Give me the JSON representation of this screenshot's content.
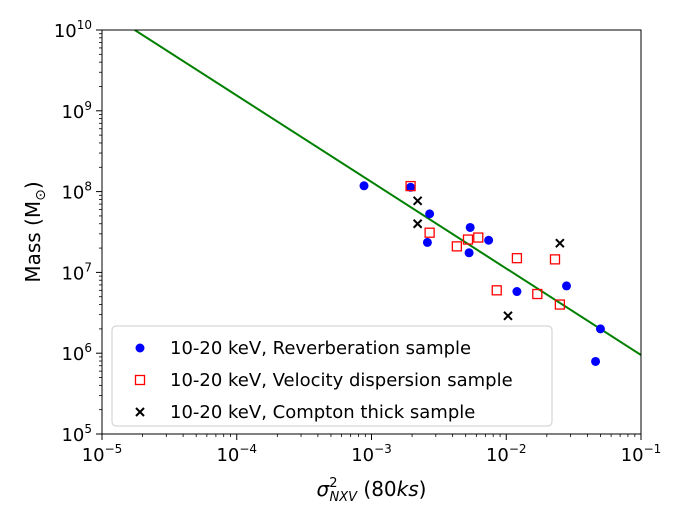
{
  "chart_data": {
    "type": "scatter",
    "title": "",
    "xlabel": {
      "symbol": "σ",
      "sup": "2",
      "sub": "NXV",
      "rest_open": " (80",
      "rest_italic": "ks",
      "rest_close": ")"
    },
    "ylabel": {
      "text": "Mass (M",
      "sub": "⊙",
      "close": ")"
    },
    "xscale": "log",
    "yscale": "log",
    "xlim": [
      1e-05,
      0.1
    ],
    "ylim": [
      100000,
      10000000000
    ],
    "x_ticks": [
      {
        "base": "10",
        "exp": "−5",
        "value": 1e-05
      },
      {
        "base": "10",
        "exp": "−4",
        "value": 0.0001
      },
      {
        "base": "10",
        "exp": "−3",
        "value": 0.001
      },
      {
        "base": "10",
        "exp": "−2",
        "value": 0.01
      },
      {
        "base": "10",
        "exp": "−1",
        "value": 0.1
      }
    ],
    "y_ticks": [
      {
        "base": "10",
        "exp": "5",
        "value": 100000
      },
      {
        "base": "10",
        "exp": "6",
        "value": 1000000
      },
      {
        "base": "10",
        "exp": "7",
        "value": 10000000
      },
      {
        "base": "10",
        "exp": "8",
        "value": 100000000
      },
      {
        "base": "10",
        "exp": "9",
        "value": 1000000000
      },
      {
        "base": "10",
        "exp": "10",
        "value": 10000000000
      }
    ],
    "legend_position": "lower-left",
    "series": [
      {
        "name": "10-20 keV, Reverberation sample",
        "marker": "circle",
        "color": "#0000ff",
        "points": [
          [
            0.00088,
            118000000
          ],
          [
            0.00195,
            113000000
          ],
          [
            0.0027,
            53000000
          ],
          [
            0.0026,
            23500000
          ],
          [
            0.0054,
            36000000
          ],
          [
            0.0053,
            17500000
          ],
          [
            0.0074,
            25000000
          ],
          [
            0.012,
            5800000
          ],
          [
            0.028,
            6800000
          ],
          [
            0.05,
            2000000
          ],
          [
            0.046,
            790000
          ]
        ]
      },
      {
        "name": "10-20 keV, Velocity dispersion sample",
        "marker": "square-open",
        "color": "#ff0000",
        "points": [
          [
            0.00195,
            117000000
          ],
          [
            0.0027,
            31000000
          ],
          [
            0.0043,
            21000000
          ],
          [
            0.0052,
            25500000
          ],
          [
            0.0062,
            27000000
          ],
          [
            0.0085,
            6000000
          ],
          [
            0.012,
            15000000
          ],
          [
            0.017,
            5400000
          ],
          [
            0.023,
            14500000
          ],
          [
            0.025,
            4000000
          ]
        ]
      },
      {
        "name": "10-20 keV, Compton thick sample",
        "marker": "x",
        "color": "#000000",
        "points": [
          [
            0.0022,
            77000000
          ],
          [
            0.0022,
            40000000
          ],
          [
            0.0103,
            2900000
          ],
          [
            0.025,
            23000000
          ]
        ]
      }
    ],
    "fit_line": {
      "name": "fit",
      "color": "#008000",
      "points": [
        [
          1.75e-05,
          10000000000
        ],
        [
          0.1,
          950000
        ]
      ]
    }
  }
}
